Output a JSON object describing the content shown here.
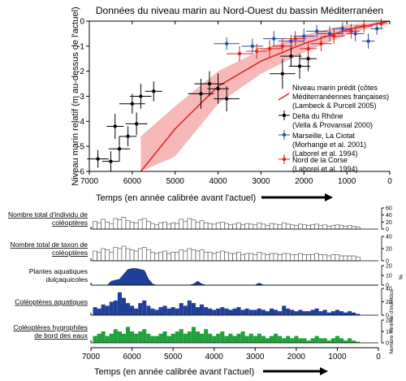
{
  "title": "Données du niveau marin au Nord-Ouest du bassin Méditerranéen",
  "chart_data": [
    {
      "type": "scatter",
      "title": "Données du niveau marin au Nord-Ouest du bassin Méditerranéen",
      "xlabel": "Temps (en année calibrée avant l'actuel)",
      "ylabel": "Niveau marin relatif (m au-dessus de l'actuel)",
      "xlim": [
        7000,
        0
      ],
      "ylim": [
        -6,
        0
      ],
      "x_ticks": [
        "7000",
        "6000",
        "5000",
        "4000",
        "3000",
        "2000",
        "1000",
        "0"
      ],
      "y_ticks": [
        "0",
        "-1",
        "-2",
        "-3",
        "-4",
        "-5",
        "-6"
      ],
      "prediction": {
        "name_lines": [
          "Niveau marin prédit (côtes",
          "Méditerranéennes françaises)",
          "(Lambeck & Purcell 2005)"
        ],
        "color": "#e02020",
        "band_color": "#f7b8b8",
        "x": [
          5800,
          5000,
          4000,
          3000,
          2000,
          1000,
          0
        ],
        "y": [
          -6.0,
          -4.3,
          -2.6,
          -1.6,
          -0.9,
          -0.35,
          0
        ],
        "upper": [
          -4.6,
          -3.4,
          -2.0,
          -1.15,
          -0.55,
          -0.15,
          0
        ],
        "lower": [
          -6.0,
          -5.4,
          -3.3,
          -2.1,
          -1.25,
          -0.55,
          0
        ]
      },
      "series": [
        {
          "name_lines": [
            "Delta du Rhône",
            "(Vella & Provansal 2000)"
          ],
          "color": "#000000",
          "points": [
            {
              "x": 6800,
              "y": -5.5,
              "xerr": 250,
              "yerr": 0.35
            },
            {
              "x": 6500,
              "y": -5.6,
              "xerr": 200,
              "yerr": 0.4
            },
            {
              "x": 6300,
              "y": -5.1,
              "xerr": 250,
              "yerr": 0.5
            },
            {
              "x": 6100,
              "y": -4.6,
              "xerr": 200,
              "yerr": 0.4
            },
            {
              "x": 5900,
              "y": -4.1,
              "xerr": 250,
              "yerr": 0.45
            },
            {
              "x": 6400,
              "y": -4.2,
              "xerr": 200,
              "yerr": 0.5
            },
            {
              "x": 6000,
              "y": -3.3,
              "xerr": 300,
              "yerr": 0.4
            },
            {
              "x": 5800,
              "y": -3.0,
              "xerr": 250,
              "yerr": 0.5
            },
            {
              "x": 5500,
              "y": -2.8,
              "xerr": 200,
              "yerr": 0.4
            },
            {
              "x": 4400,
              "y": -2.9,
              "xerr": 300,
              "yerr": 0.6
            },
            {
              "x": 4200,
              "y": -2.5,
              "xerr": 350,
              "yerr": 0.5
            },
            {
              "x": 4000,
              "y": -2.7,
              "xerr": 250,
              "yerr": 0.6
            },
            {
              "x": 3800,
              "y": -3.1,
              "xerr": 300,
              "yerr": 0.5
            },
            {
              "x": 2500,
              "y": -2.1,
              "xerr": 300,
              "yerr": 0.6
            },
            {
              "x": 2100,
              "y": -1.8,
              "xerr": 250,
              "yerr": 0.5
            },
            {
              "x": 1900,
              "y": -1.5,
              "xerr": 200,
              "yerr": 0.5
            },
            {
              "x": 2300,
              "y": -1.4,
              "xerr": 250,
              "yerr": 0.4
            }
          ]
        },
        {
          "name_lines": [
            "Marseille, La Ciotat",
            "(Morhange et al. 2001)",
            "(Laborel et al. 1994)"
          ],
          "color": "#2b4ea8",
          "points": [
            {
              "x": 3800,
              "y": -0.9,
              "xerr": 300,
              "yerr": 0.25
            },
            {
              "x": 3200,
              "y": -1.0,
              "xerr": 250,
              "yerr": 0.3
            },
            {
              "x": 2700,
              "y": -0.7,
              "xerr": 250,
              "yerr": 0.3
            },
            {
              "x": 2300,
              "y": -0.8,
              "xerr": 300,
              "yerr": 0.25
            },
            {
              "x": 2000,
              "y": -0.6,
              "xerr": 250,
              "yerr": 0.3
            },
            {
              "x": 1700,
              "y": -0.4,
              "xerr": 250,
              "yerr": 0.25
            },
            {
              "x": 1400,
              "y": -0.5,
              "xerr": 300,
              "yerr": 0.3
            },
            {
              "x": 1100,
              "y": -0.3,
              "xerr": 250,
              "yerr": 0.25
            },
            {
              "x": 800,
              "y": -0.5,
              "xerr": 200,
              "yerr": 0.3
            },
            {
              "x": 500,
              "y": -0.8,
              "xerr": 150,
              "yerr": 0.3
            },
            {
              "x": 300,
              "y": -0.3,
              "xerr": 150,
              "yerr": 0.25
            }
          ]
        },
        {
          "name_lines": [
            "Nord de la Corse",
            "(Laborel et al. 1994)"
          ],
          "color": "#e02020",
          "points": [
            {
              "x": 3500,
              "y": -1.3,
              "xerr": 300,
              "yerr": 0.3
            },
            {
              "x": 3100,
              "y": -1.2,
              "xerr": 250,
              "yerr": 0.3
            },
            {
              "x": 2800,
              "y": -1.1,
              "xerr": 300,
              "yerr": 0.35
            },
            {
              "x": 2500,
              "y": -1.0,
              "xerr": 250,
              "yerr": 0.3
            },
            {
              "x": 2200,
              "y": -0.7,
              "xerr": 250,
              "yerr": 0.3
            },
            {
              "x": 1900,
              "y": -1.1,
              "xerr": 200,
              "yerr": 0.3
            },
            {
              "x": 1600,
              "y": -0.9,
              "xerr": 250,
              "yerr": 0.3
            },
            {
              "x": 1300,
              "y": -0.6,
              "xerr": 250,
              "yerr": 0.3
            },
            {
              "x": 900,
              "y": -0.4,
              "xerr": 200,
              "yerr": 0.3
            },
            {
              "x": 600,
              "y": -0.2,
              "xerr": 200,
              "yerr": 0.25
            },
            {
              "x": 200,
              "y": -0.1,
              "xerr": 150,
              "yerr": 0.2
            }
          ]
        }
      ]
    },
    {
      "type": "bar",
      "xlabel": "Temps (en année calibrée avant l'actuel)",
      "xlim": [
        7000,
        0
      ],
      "x_ticks": [
        "7000",
        "6000",
        "5000",
        "4000",
        "3000",
        "2000",
        "1000",
        "0"
      ],
      "right_axis_label_pct": "%",
      "right_axis_label_count": "Nombre minimal d'individus",
      "panels": [
        {
          "name_lines": [
            "Nombre total d'individu de",
            "coléoptères"
          ],
          "style": "open",
          "ymax": 60,
          "ticks": [
            "60",
            "40",
            "20",
            "0"
          ],
          "x": [
            6900,
            6800,
            6700,
            6600,
            6500,
            6400,
            6300,
            6200,
            6100,
            6000,
            5900,
            5800,
            5700,
            5600,
            5500,
            5400,
            5300,
            5200,
            5100,
            5000,
            4900,
            4800,
            4700,
            4600,
            4500,
            4400,
            4300,
            4200,
            4100,
            4000,
            3900,
            3800,
            3700,
            3600,
            3500,
            3400,
            3300,
            3200,
            3100,
            3000,
            2900,
            2800,
            2700,
            2600,
            2500,
            2400,
            2300,
            2200,
            2100,
            2000,
            1900,
            1800,
            1700,
            1600,
            1500,
            1400,
            1300,
            1200,
            1100,
            1000,
            900,
            800,
            700,
            600,
            500
          ],
          "values": [
            22,
            18,
            28,
            20,
            15,
            30,
            26,
            34,
            24,
            20,
            18,
            26,
            30,
            22,
            16,
            12,
            18,
            20,
            14,
            18,
            16,
            28,
            22,
            30,
            26,
            20,
            24,
            18,
            16,
            14,
            18,
            20,
            16,
            12,
            14,
            18,
            12,
            16,
            14,
            12,
            18,
            14,
            10,
            16,
            14,
            12,
            18,
            14,
            12,
            10,
            14,
            12,
            10,
            12,
            14,
            10,
            12,
            8,
            10,
            12,
            10,
            8,
            10,
            8,
            6
          ]
        },
        {
          "name_lines": [
            "Nombre total de taxon de",
            "coléoptères"
          ],
          "style": "open",
          "ymax": 40,
          "ticks": [
            "40",
            "20",
            "0"
          ],
          "x": [
            6900,
            6800,
            6700,
            6600,
            6500,
            6400,
            6300,
            6200,
            6100,
            6000,
            5900,
            5800,
            5700,
            5600,
            5500,
            5400,
            5300,
            5200,
            5100,
            5000,
            4900,
            4800,
            4700,
            4600,
            4500,
            4400,
            4300,
            4200,
            4100,
            4000,
            3900,
            3800,
            3700,
            3600,
            3500,
            3400,
            3300,
            3200,
            3100,
            3000,
            2900,
            2800,
            2700,
            2600,
            2500,
            2400,
            2300,
            2200,
            2100,
            2000,
            1900,
            1800,
            1700,
            1600,
            1500,
            1400,
            1300,
            1200,
            1100,
            1000,
            900,
            800,
            700,
            600,
            500
          ],
          "values": [
            16,
            14,
            20,
            18,
            14,
            22,
            20,
            24,
            20,
            18,
            16,
            20,
            22,
            18,
            14,
            12,
            14,
            16,
            12,
            14,
            14,
            18,
            16,
            20,
            18,
            16,
            18,
            14,
            14,
            12,
            14,
            16,
            14,
            12,
            12,
            14,
            10,
            12,
            12,
            10,
            14,
            12,
            10,
            12,
            12,
            10,
            12,
            12,
            10,
            10,
            12,
            10,
            10,
            10,
            12,
            10,
            10,
            8,
            10,
            10,
            8,
            8,
            8,
            8,
            6
          ]
        },
        {
          "name_lines": [
            "Plantes aquatiques",
            "dulçaquicoles"
          ],
          "style": "area",
          "ymax": 20,
          "ticks": [
            "20",
            "10",
            "0"
          ],
          "x": [
            7000,
            6600,
            6500,
            6300,
            6100,
            6000,
            5900,
            5700,
            5600,
            5500,
            5400,
            4600,
            4500,
            4400,
            4300,
            4200,
            3000,
            2900,
            2800,
            0
          ],
          "values": [
            0,
            0,
            4,
            6,
            16,
            17,
            17,
            15,
            6,
            1,
            0,
            0,
            1,
            4,
            1,
            0,
            0,
            2,
            0,
            0
          ]
        },
        {
          "name_lines": [
            "Coléoptères aquatiques"
          ],
          "style": "filled",
          "color": "#1f3f9a",
          "ymax": 40,
          "ticks": [
            "40",
            "20",
            "0"
          ],
          "x": [
            6900,
            6800,
            6700,
            6600,
            6500,
            6400,
            6300,
            6200,
            6100,
            6000,
            5900,
            5800,
            5700,
            5600,
            5500,
            5400,
            5300,
            5200,
            5100,
            5000,
            4900,
            4800,
            4700,
            4600,
            4500,
            4400,
            4300,
            4200,
            4100,
            4000,
            3900,
            3800,
            3700,
            3600,
            3500,
            3400,
            3300,
            3200,
            3100,
            3000,
            2900,
            2800,
            2700,
            2600,
            2500,
            2400,
            2300,
            2200,
            2100,
            2000,
            1900,
            1800,
            1700,
            1600,
            1500,
            1400,
            1300,
            1200,
            1100,
            1000,
            900,
            800,
            700,
            600,
            500
          ],
          "values": [
            12,
            10,
            16,
            14,
            20,
            22,
            34,
            26,
            18,
            14,
            10,
            18,
            22,
            14,
            10,
            8,
            12,
            14,
            10,
            12,
            10,
            18,
            14,
            22,
            18,
            12,
            16,
            12,
            10,
            8,
            10,
            12,
            10,
            8,
            10,
            12,
            8,
            10,
            8,
            8,
            10,
            8,
            6,
            10,
            8,
            6,
            14,
            10,
            8,
            6,
            8,
            6,
            6,
            8,
            10,
            6,
            8,
            4,
            6,
            8,
            6,
            4,
            6,
            4,
            2
          ]
        },
        {
          "name_lines": [
            "Coléoptères hygrophiles",
            "de bord des eaux"
          ],
          "style": "filled",
          "color": "#1fa23a",
          "ymax": 20,
          "ticks": [
            "20",
            "10",
            "0"
          ],
          "x": [
            6900,
            6800,
            6700,
            6600,
            6500,
            6400,
            6300,
            6200,
            6100,
            6000,
            5900,
            5800,
            5700,
            5600,
            5500,
            5400,
            5300,
            5200,
            5100,
            5000,
            4900,
            4800,
            4700,
            4600,
            4500,
            4400,
            4300,
            4200,
            4100,
            4000,
            3900,
            3800,
            3700,
            3600,
            3500,
            3400,
            3300,
            3200,
            3100,
            3000,
            2900,
            2800,
            2700,
            2600,
            2500,
            2400,
            2300,
            2200,
            2100,
            2000,
            1900,
            1800,
            1700,
            1600,
            1500,
            1400,
            1300,
            1200,
            1100,
            1000,
            900,
            800,
            700,
            600,
            500
          ],
          "values": [
            6,
            8,
            10,
            6,
            8,
            12,
            10,
            8,
            14,
            10,
            8,
            10,
            12,
            8,
            6,
            6,
            8,
            10,
            6,
            8,
            10,
            12,
            8,
            10,
            14,
            10,
            8,
            12,
            8,
            6,
            8,
            10,
            6,
            8,
            6,
            8,
            10,
            6,
            8,
            6,
            8,
            6,
            4,
            6,
            8,
            6,
            4,
            6,
            4,
            6,
            4,
            4,
            2,
            4,
            6,
            4,
            4,
            2,
            4,
            6,
            4,
            2,
            4,
            2,
            1
          ]
        }
      ]
    }
  ]
}
